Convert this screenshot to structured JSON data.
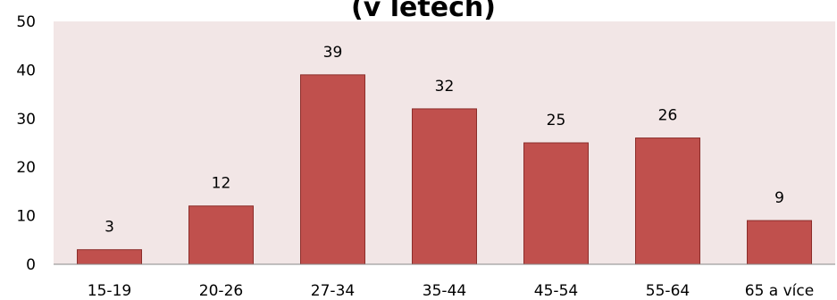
{
  "chart_data": {
    "type": "bar",
    "title": "(v letech)",
    "categories": [
      "15-19",
      "20-26",
      "27-34",
      "35-44",
      "45-54",
      "55-64",
      "65 a více"
    ],
    "values": [
      3,
      12,
      39,
      32,
      25,
      26,
      9
    ],
    "xlabel": "",
    "ylabel": "",
    "ylim": [
      0,
      50
    ],
    "yticks": [
      0,
      10,
      20,
      30,
      40,
      50
    ],
    "grid": false,
    "legend": "none",
    "colors": {
      "bar_fill": "#c0504d",
      "bar_stroke": "#8c2d2a",
      "plot_background": "#f2e6e6",
      "axis": "#888888"
    }
  }
}
